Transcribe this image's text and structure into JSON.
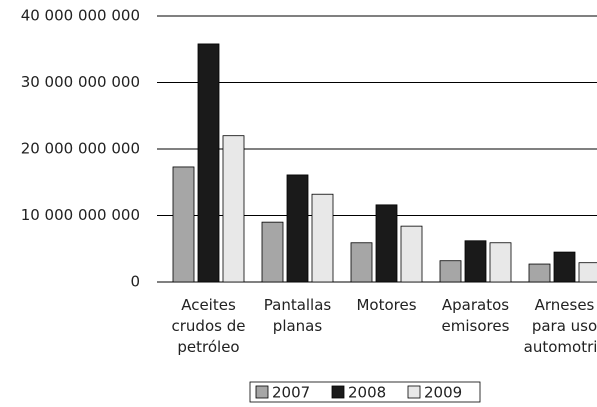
{
  "chart_data": {
    "type": "bar",
    "categories": [
      "Aceites crudos de petróleo",
      "Pantallas planas",
      "Motores",
      "Aparatos emisores",
      "Arneses para uso automotriz"
    ],
    "series": [
      {
        "name": "2007",
        "color": "#a6a6a6",
        "values": [
          17300000000,
          9000000000,
          5900000000,
          3200000000,
          2700000000
        ]
      },
      {
        "name": "2008",
        "color": "#1a1a1a",
        "values": [
          35800000000,
          16100000000,
          11600000000,
          6200000000,
          4500000000
        ]
      },
      {
        "name": "2009",
        "color": "#e8e8e8",
        "values": [
          22000000000,
          13200000000,
          8400000000,
          5900000000,
          2900000000
        ]
      }
    ],
    "ylim": [
      0,
      40000000000
    ],
    "yticks": [
      0,
      {
        "value": 10000000000,
        "label": "10 000 000 000"
      },
      {
        "value": 20000000000,
        "label": "20 000 000 000"
      },
      {
        "value": 30000000000,
        "label": "30 000 000 000"
      },
      {
        "value": 40000000000,
        "label": "40 000 000 000"
      }
    ],
    "grid": true,
    "legend": "bottom"
  }
}
